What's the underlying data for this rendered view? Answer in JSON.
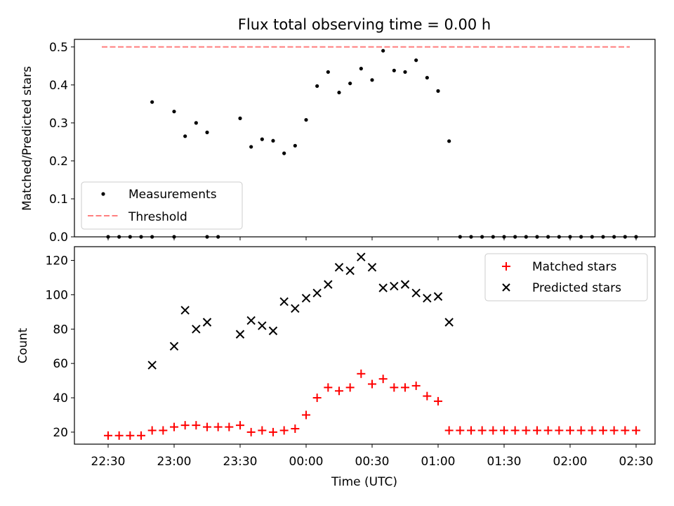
{
  "chart_data": [
    {
      "type": "scatter",
      "title": "Flux total observing time = 0.00 h",
      "xlabel": "",
      "ylabel": "Matched/Predicted stars",
      "ylim": [
        0,
        0.52
      ],
      "yticks": [
        0.0,
        0.1,
        0.2,
        0.3,
        0.4,
        0.5
      ],
      "ytick_labels": [
        "0.0",
        "0.1",
        "0.2",
        "0.3",
        "0.4",
        "0.5"
      ],
      "legend_position": "lower-left",
      "threshold": {
        "name": "Threshold",
        "value": 0.5,
        "x_start": "22:30",
        "x_end": "02:30",
        "color": "#ff7f7f",
        "style": "dashed"
      },
      "series": [
        {
          "name": "Measurements",
          "color": "#000000",
          "marker": "dot",
          "x": [
            "22:30",
            "22:35",
            "22:40",
            "22:45",
            "22:50",
            "23:00",
            "23:15",
            "23:20"
          ],
          "y": [
            0,
            0,
            0,
            0,
            0,
            0,
            0,
            0
          ]
        },
        {
          "name": "Measurements",
          "color": "#000000",
          "marker": "dot",
          "x": [
            "22:50",
            "23:00",
            "23:05",
            "23:10",
            "23:15",
            "23:30",
            "23:35",
            "23:40",
            "23:45",
            "23:50",
            "23:55",
            "00:00",
            "00:05",
            "00:10",
            "00:15",
            "00:20",
            "00:25",
            "00:30",
            "00:35",
            "00:40",
            "00:45",
            "00:50",
            "00:55",
            "01:00",
            "01:05",
            "01:10",
            "01:15",
            "01:20",
            "01:25",
            "01:30",
            "01:35",
            "01:40",
            "01:45",
            "01:50",
            "01:55",
            "02:00",
            "02:05",
            "02:10",
            "02:15",
            "02:20",
            "02:25",
            "02:30"
          ],
          "y": [
            0.355,
            0.33,
            0.265,
            0.3,
            0.275,
            0.312,
            0.237,
            0.257,
            0.253,
            0.22,
            0.24,
            0.308,
            0.397,
            0.434,
            0.38,
            0.404,
            0.443,
            0.413,
            0.49,
            0.438,
            0.434,
            0.465,
            0.419,
            0.384,
            0.252,
            0,
            0,
            0,
            0,
            0,
            0,
            0,
            0,
            0,
            0,
            0,
            0,
            0,
            0,
            0,
            0,
            0
          ]
        }
      ]
    },
    {
      "type": "scatter",
      "title": "",
      "xlabel": "Time (UTC)",
      "ylabel": "Count",
      "ylim": [
        13,
        128
      ],
      "yticks": [
        20,
        40,
        60,
        80,
        100,
        120
      ],
      "ytick_labels": [
        "20",
        "40",
        "60",
        "80",
        "100",
        "120"
      ],
      "x_tick_labels": [
        "22:30",
        "23:00",
        "23:30",
        "00:00",
        "00:30",
        "01:00",
        "01:30",
        "02:00",
        "02:30"
      ],
      "legend_position": "upper-right",
      "series": [
        {
          "name": "Matched stars",
          "color": "#ff0000",
          "marker": "plus",
          "x": [
            "22:30",
            "22:35",
            "22:40",
            "22:45",
            "22:50",
            "22:55",
            "23:00",
            "23:05",
            "23:10",
            "23:15",
            "23:20",
            "23:25",
            "23:30",
            "23:35",
            "23:40",
            "23:45",
            "23:50",
            "23:55",
            "00:00",
            "00:05",
            "00:10",
            "00:15",
            "00:20",
            "00:25",
            "00:30",
            "00:35",
            "00:40",
            "00:45",
            "00:50",
            "00:55",
            "01:00",
            "01:05",
            "01:10",
            "01:15",
            "01:20",
            "01:25",
            "01:30",
            "01:35",
            "01:40",
            "01:45",
            "01:50",
            "01:55",
            "02:00",
            "02:05",
            "02:10",
            "02:15",
            "02:20",
            "02:25",
            "02:30"
          ],
          "y": [
            18,
            18,
            18,
            18,
            21,
            21,
            23,
            24,
            24,
            23,
            23,
            23,
            24,
            20,
            21,
            20,
            21,
            22,
            30,
            40,
            46,
            44,
            46,
            54,
            48,
            51,
            46,
            46,
            47,
            41,
            38,
            21,
            21,
            21,
            21,
            21,
            21,
            21,
            21,
            21,
            21,
            21,
            21,
            21,
            21,
            21,
            21,
            21,
            21
          ]
        },
        {
          "name": "Predicted stars",
          "color": "#000000",
          "marker": "x",
          "x": [
            "22:50",
            "23:00",
            "23:05",
            "23:10",
            "23:15",
            "23:30",
            "23:35",
            "23:40",
            "23:45",
            "23:50",
            "23:55",
            "00:00",
            "00:05",
            "00:10",
            "00:15",
            "00:20",
            "00:25",
            "00:30",
            "00:35",
            "00:40",
            "00:45",
            "00:50",
            "00:55",
            "01:00",
            "01:05"
          ],
          "y": [
            59,
            70,
            91,
            80,
            84,
            77,
            85,
            82,
            79,
            96,
            92,
            98,
            101,
            106,
            116,
            114,
            122,
            116,
            104,
            105,
            106,
            101,
            98,
            99,
            84
          ]
        }
      ]
    }
  ]
}
